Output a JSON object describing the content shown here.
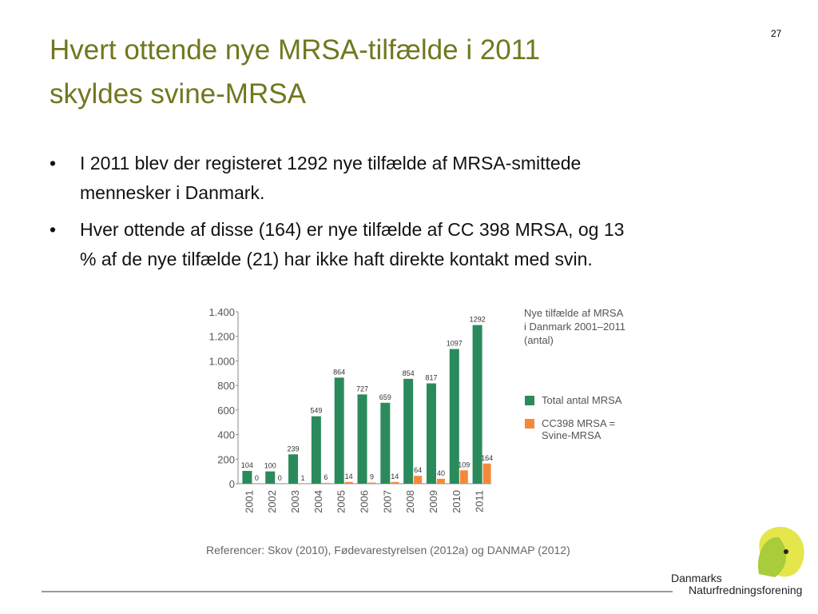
{
  "slide_number": "27",
  "title": [
    "Hvert ottende nye MRSA-tilfælde i 2011",
    "skyldes svine-MRSA"
  ],
  "bullets": [
    [
      "I 2011 blev der registeret 1292 nye tilfælde af MRSA-smittede",
      "mennesker i Danmark."
    ],
    [
      "Hver ottende af disse (164) er nye tilfælde af CC 398 MRSA, og 13",
      "% af de nye tilfælde (21) har ikke haft direkte kontakt med svin."
    ]
  ],
  "chart_data": {
    "type": "bar",
    "title": [
      "Nye tilfælde af MRSA",
      "i Danmark 2001–2011",
      "(antal)"
    ],
    "categories": [
      "2001",
      "2002",
      "2003",
      "2004",
      "2005",
      "2006",
      "2007",
      "2008",
      "2009",
      "2010",
      "2011"
    ],
    "series": [
      {
        "name": "Total antal MRSA",
        "color": "#2b8a5c",
        "values": [
          104,
          100,
          239,
          549,
          864,
          727,
          659,
          854,
          817,
          1097,
          1292
        ]
      },
      {
        "name": "CC398 MRSA = Svine-MRSA",
        "color": "#f5893a",
        "values": [
          0,
          0,
          1,
          6,
          14,
          9,
          14,
          64,
          40,
          109,
          164
        ]
      }
    ],
    "ylim": [
      0,
      1400
    ],
    "yticks": [
      0,
      200,
      400,
      600,
      800,
      {
        "value": 1000,
        "label": "1.000"
      },
      {
        "value": 1200,
        "label": "1.200"
      },
      {
        "value": 1400,
        "label": "1.400"
      }
    ],
    "legend": "right",
    "source": "Referencer: Skov (2010), Fødevarestyrelsen (2012a) og DANMAP (2012)"
  },
  "logo": [
    "Danmarks",
    "Naturfredningsforening"
  ]
}
